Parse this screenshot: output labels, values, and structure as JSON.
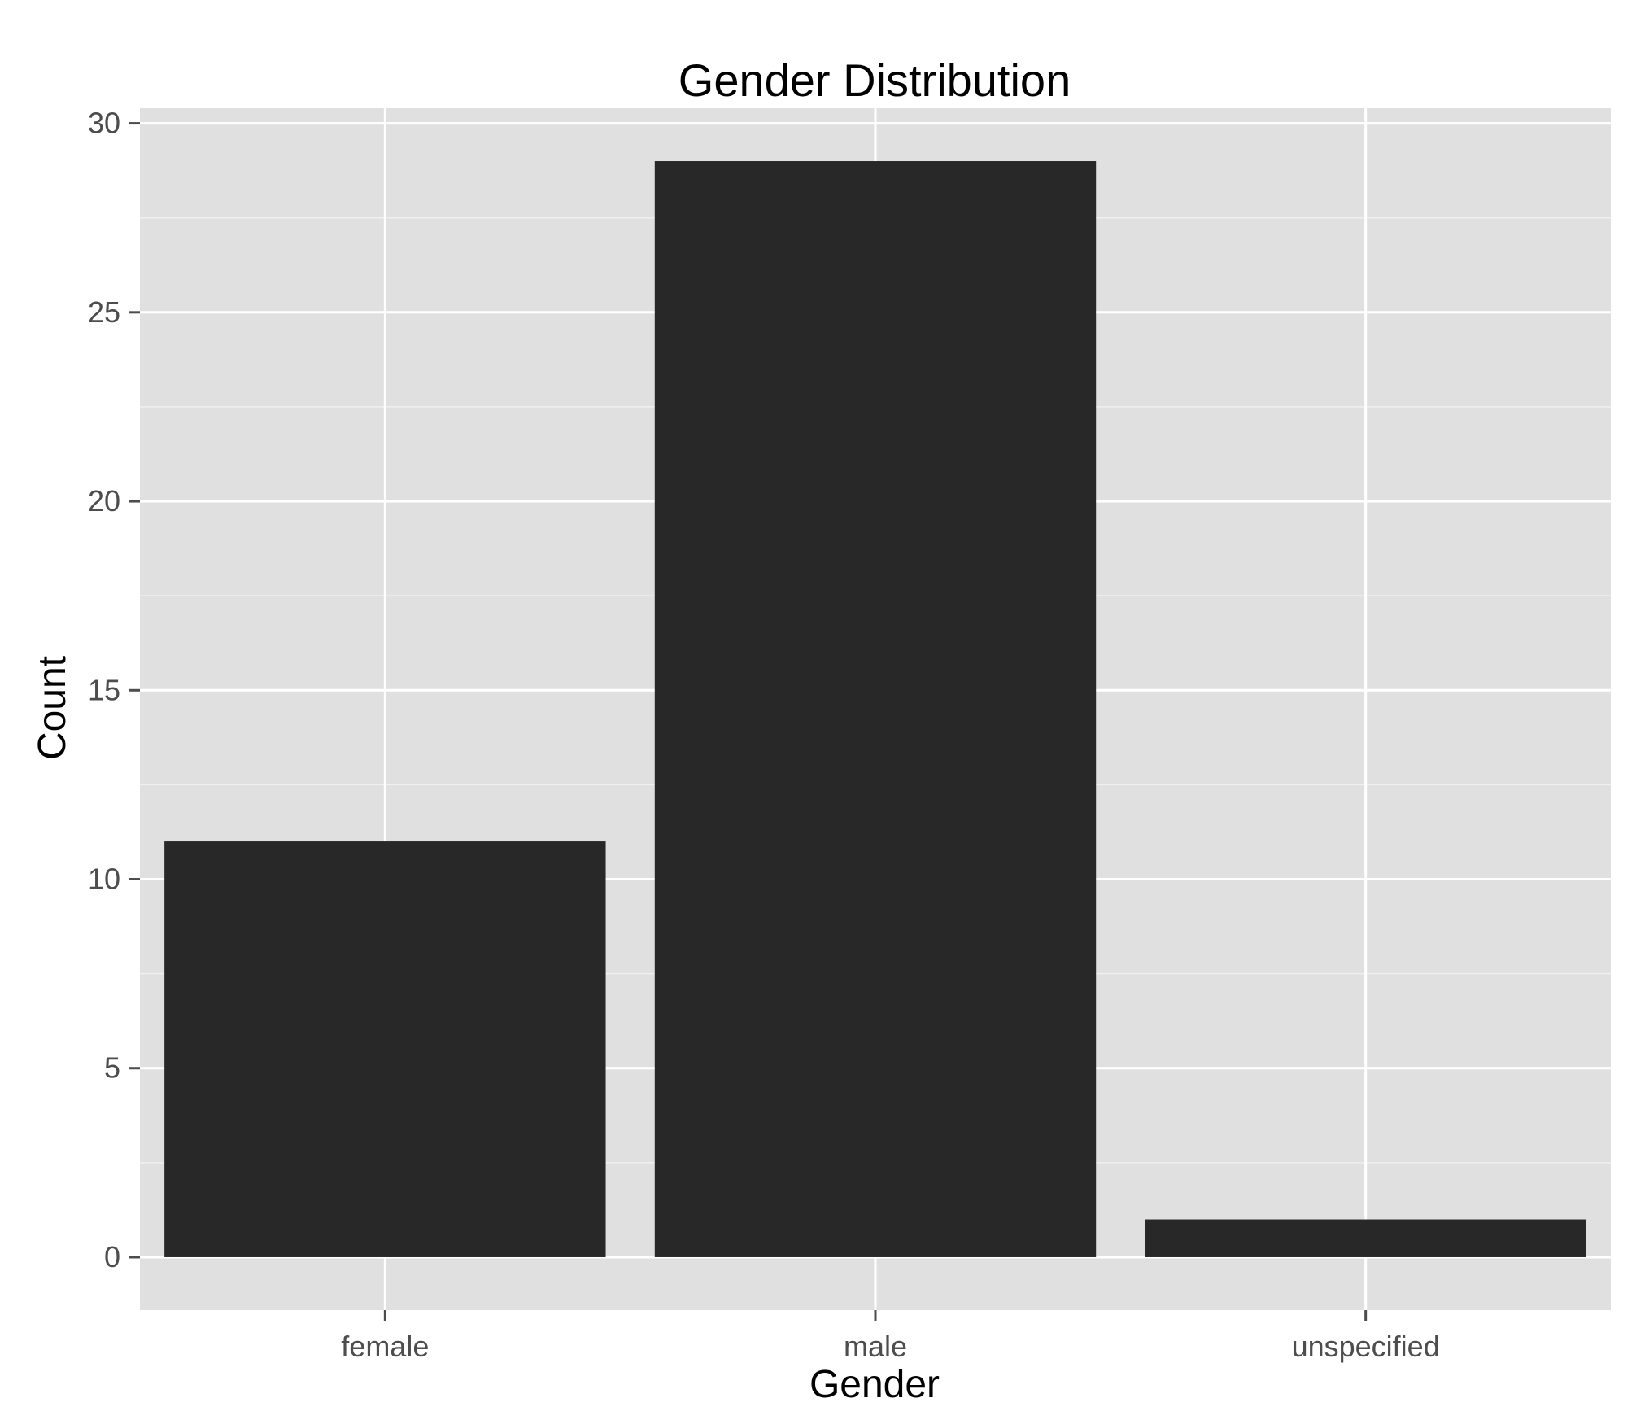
{
  "chart_data": {
    "type": "bar",
    "title": "Gender Distribution",
    "xlabel": "Gender",
    "ylabel": "Count",
    "categories": [
      "female",
      "male",
      "unspecified"
    ],
    "values": [
      11,
      29,
      1
    ],
    "ylim": [
      -1.4,
      30.4
    ],
    "yticks": [
      0,
      5,
      10,
      15,
      20,
      25,
      30
    ],
    "grid": true,
    "legend": "none",
    "colors": {
      "bar": "#282828",
      "panel": "#e0e0e0",
      "grid_major": "#ffffff",
      "grid_minor": "#f0f0f0",
      "tick_text": "#4d4d4d",
      "axis_tick": "#4d4d4d"
    }
  }
}
